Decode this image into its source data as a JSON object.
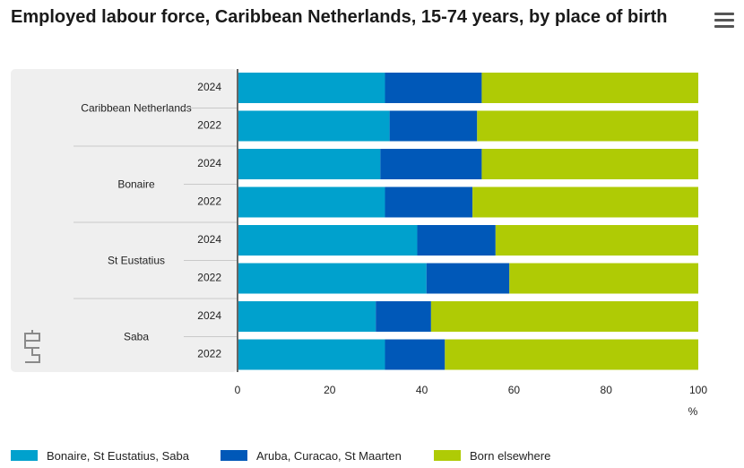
{
  "title": "Employed labour force, Caribbean Netherlands, 15-74 years, by place of birth",
  "menu_icon": "hamburger-menu-icon",
  "logo_icon": "cbs-logo",
  "colors": {
    "series": [
      "#00a1cd",
      "#0058b8",
      "#afcb05"
    ],
    "panel": "#efefef",
    "divider": "#c9c9c9",
    "axis": "#666666"
  },
  "chart_data": {
    "type": "bar",
    "orientation": "horizontal",
    "stacked": true,
    "groups": [
      {
        "name": "Caribbean Netherlands",
        "categories": [
          "2024",
          "2022"
        ]
      },
      {
        "name": "Bonaire",
        "categories": [
          "2024",
          "2022"
        ]
      },
      {
        "name": "St Eustatius",
        "categories": [
          "2024",
          "2022"
        ]
      },
      {
        "name": "Saba",
        "categories": [
          "2024",
          "2022"
        ]
      }
    ],
    "series": [
      {
        "name": "Bonaire, St Eustatius, Saba",
        "values": [
          32,
          33,
          31,
          32,
          39,
          41,
          30,
          32
        ]
      },
      {
        "name": "Aruba, Curacao, St Maarten",
        "values": [
          21,
          19,
          22,
          19,
          17,
          18,
          12,
          13
        ]
      },
      {
        "name": "Born elsewhere",
        "values": [
          47,
          48,
          47,
          49,
          44,
          41,
          58,
          55
        ]
      }
    ],
    "xlim": [
      0,
      100
    ],
    "xticks": [
      "0",
      "20",
      "40",
      "60",
      "80",
      "100"
    ],
    "xunit": "%",
    "legend_position": "bottom",
    "grid": false
  }
}
